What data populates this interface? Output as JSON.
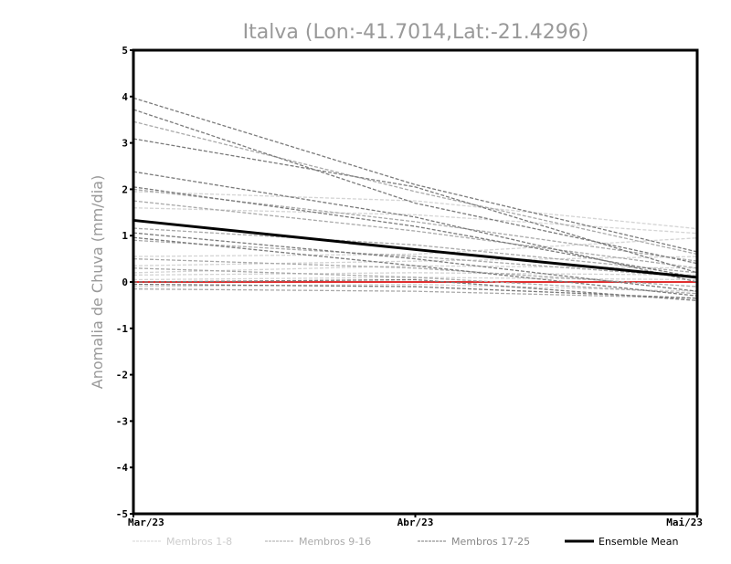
{
  "chart_data": {
    "type": "line",
    "title": "Italva (Lon:-41.7014,Lat:-21.4296)",
    "xlabel": "",
    "ylabel": "Anomalia de Chuva (mm/dia)",
    "categories": [
      "Mar/23",
      "Abr/23",
      "Mai/23"
    ],
    "ylim": [
      -5,
      5
    ],
    "yticks": [
      "-5",
      "-4",
      "-3",
      "-2",
      "-1",
      "0",
      "1",
      "2",
      "3",
      "4",
      "5"
    ],
    "grid": false,
    "legend_position": "bottom",
    "groups": [
      {
        "name": "Membros 1-8",
        "color": "#d4d4d4",
        "series": [
          [
            1.95,
            1.75,
            1.15
          ],
          [
            1.6,
            1.45,
            1.05
          ],
          [
            0.55,
            0.6,
            0.95
          ],
          [
            0.35,
            0.45,
            0.55
          ],
          [
            0.2,
            0.35,
            0.3
          ],
          [
            0.15,
            0.2,
            0.15
          ],
          [
            0.05,
            0.1,
            0.05
          ],
          [
            -0.1,
            -0.05,
            -0.2
          ]
        ]
      },
      {
        "name": "Membros 9-16",
        "color": "#a9a9a9",
        "series": [
          [
            3.46,
            1.95,
            0.6
          ],
          [
            2.0,
            1.3,
            0.45
          ],
          [
            1.75,
            1.1,
            0.3
          ],
          [
            1.16,
            0.8,
            0.2
          ],
          [
            0.9,
            0.55,
            0.1
          ],
          [
            0.5,
            0.3,
            -0.1
          ],
          [
            0.3,
            0.1,
            -0.25
          ],
          [
            -0.15,
            -0.2,
            -0.35
          ]
        ]
      },
      {
        "name": "Membros 17-25",
        "color": "#7a7a7a",
        "series": [
          [
            3.97,
            2.1,
            0.65
          ],
          [
            3.72,
            1.7,
            0.4
          ],
          [
            3.09,
            2.05,
            0.2
          ],
          [
            2.38,
            1.4,
            0.0
          ],
          [
            2.05,
            1.2,
            0.1
          ],
          [
            1.06,
            0.5,
            -0.2
          ],
          [
            0.96,
            0.35,
            -0.3
          ],
          [
            0.0,
            0.05,
            -0.4
          ],
          [
            -0.05,
            -0.1,
            -0.35
          ]
        ]
      }
    ],
    "ensemble_mean": {
      "name": "Ensemble Mean",
      "color": "#000000",
      "values": [
        1.33,
        0.7,
        0.1
      ]
    },
    "zero_line_color": "#e03030"
  }
}
